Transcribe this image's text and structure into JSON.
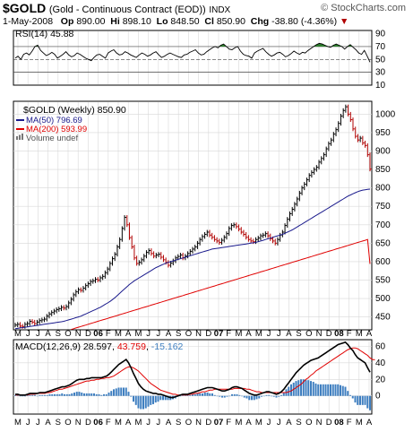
{
  "header": {
    "symbol": "$GOLD",
    "name": "(Gold - Continuous Contract (EOD))",
    "exchange": "INDX",
    "brand": "© StockCharts.com",
    "date": "1-May-2008",
    "open_label": "Op",
    "open": "890.00",
    "high_label": "Hi",
    "high": "898.10",
    "low_label": "Lo",
    "low": "848.50",
    "close_label": "Cl",
    "close": "850.90",
    "change_label": "Chg",
    "change": "-38.80 (-4.36%)",
    "change_arrow": "▼"
  },
  "chart_data": [
    {
      "type": "line",
      "panel": "rsi",
      "label": "RSI(14) 45.88",
      "ylim": [
        10,
        95
      ],
      "yticks": [
        90,
        70,
        50,
        30,
        10
      ],
      "reference_lines": [
        70,
        50,
        30
      ],
      "values": [
        52,
        55,
        50,
        58,
        60,
        57,
        63,
        70,
        72,
        64,
        60,
        56,
        58,
        61,
        58,
        52,
        55,
        58,
        62,
        57,
        54,
        56,
        60,
        58,
        55,
        52,
        50,
        48,
        53,
        57,
        58,
        55,
        52,
        60,
        63,
        65,
        60,
        57,
        58,
        62,
        60,
        57,
        55,
        53,
        57,
        60,
        58,
        55,
        57,
        60,
        62,
        57,
        53,
        55,
        58,
        60,
        58,
        56,
        54,
        53,
        57,
        58,
        61,
        63,
        65,
        60,
        57,
        58,
        62,
        65,
        68,
        70,
        68,
        72,
        74,
        70,
        66,
        65,
        68,
        70,
        63,
        58,
        56,
        55,
        52,
        60,
        63,
        65,
        67,
        62,
        58,
        55,
        57,
        60,
        61,
        58,
        54,
        56,
        59,
        63,
        60,
        58,
        61,
        60,
        64,
        67,
        70,
        73,
        75,
        74,
        72,
        70,
        69,
        72,
        74,
        72,
        70,
        66,
        70,
        73,
        69,
        65,
        60,
        58,
        64,
        55,
        45.88
      ]
    },
    {
      "type": "line",
      "panel": "price",
      "title": "$GOLD (Weekly) 850.90",
      "legend": [
        {
          "name": "MA(50) 796.69",
          "color": "#1a1a8c"
        },
        {
          "name": "MA(200) 593.99",
          "color": "#e00000"
        },
        {
          "name": "Volume undef",
          "color": "#777777"
        }
      ],
      "ylim": [
        415,
        1035
      ],
      "yticks": [
        1000,
        950,
        900,
        850,
        800,
        750,
        700,
        650,
        600,
        550,
        500,
        450
      ],
      "x_labels": [
        "M",
        "J",
        "J",
        "A",
        "S",
        "O",
        "N",
        "D",
        "06",
        "F",
        "M",
        "A",
        "M",
        "J",
        "J",
        "A",
        "S",
        "O",
        "N",
        "D",
        "07",
        "F",
        "M",
        "A",
        "M",
        "J",
        "J",
        "A",
        "S",
        "O",
        "N",
        "D",
        "08",
        "F",
        "M",
        "A"
      ],
      "price": [
        428,
        430,
        425,
        424,
        430,
        432,
        438,
        436,
        432,
        436,
        440,
        442,
        444,
        452,
        458,
        462,
        466,
        470,
        472,
        476,
        474,
        478,
        488,
        498,
        510,
        518,
        524,
        522,
        528,
        535,
        540,
        546,
        548,
        552,
        550,
        556,
        560,
        570,
        580,
        595,
        608,
        620,
        640,
        660,
        690,
        720,
        700,
        665,
        640,
        610,
        595,
        598,
        605,
        615,
        625,
        630,
        622,
        615,
        618,
        620,
        612,
        605,
        598,
        590,
        596,
        602,
        610,
        614,
        618,
        610,
        615,
        622,
        628,
        634,
        640,
        650,
        660,
        668,
        674,
        680,
        672,
        666,
        660,
        656,
        652,
        658,
        666,
        676,
        690,
        698,
        700,
        695,
        688,
        680,
        674,
        666,
        660,
        656,
        654,
        660,
        664,
        670,
        672,
        676,
        670,
        662,
        656,
        650,
        660,
        672,
        680,
        698,
        715,
        730,
        742,
        756,
        770,
        786,
        800,
        810,
        822,
        834,
        842,
        850,
        856,
        870,
        880,
        890,
        906,
        920,
        930,
        946,
        958,
        975,
        995,
        1010,
        1020,
        1000,
        985,
        960,
        940,
        930,
        935,
        922,
        915,
        890,
        850.9
      ],
      "ma50": [
        418,
        419,
        420,
        421,
        422,
        423,
        424,
        425,
        426,
        427,
        428,
        429,
        430,
        431,
        432,
        433,
        434,
        435,
        436,
        437,
        438,
        440,
        442,
        444,
        446,
        448,
        450,
        452,
        455,
        458,
        461,
        464,
        467,
        470,
        473,
        476,
        480,
        484,
        488,
        492,
        497,
        502,
        508,
        514,
        520,
        526,
        532,
        538,
        543,
        548,
        552,
        556,
        560,
        564,
        568,
        572,
        576,
        580,
        584,
        587,
        590,
        593,
        596,
        598,
        600,
        602,
        604,
        606,
        608,
        610,
        612,
        614,
        616,
        618,
        620,
        622,
        624,
        626,
        628,
        630,
        632,
        634,
        635,
        636,
        637,
        638,
        639,
        640,
        641,
        642,
        643,
        644,
        645,
        646,
        647,
        648,
        649,
        650,
        651,
        652,
        654,
        656,
        658,
        660,
        662,
        664,
        666,
        668,
        670,
        672,
        674,
        677,
        680,
        683,
        686,
        690,
        694,
        698,
        702,
        706,
        710,
        714,
        718,
        722,
        726,
        730,
        734,
        738,
        742,
        746,
        750,
        754,
        758,
        762,
        766,
        770,
        774,
        778,
        781,
        784,
        787,
        790,
        792,
        794,
        795,
        796,
        796.69
      ],
      "ma200": [
        370,
        372,
        374,
        376,
        378,
        380,
        382,
        384,
        386,
        388,
        390,
        392,
        394,
        396,
        398,
        400,
        402,
        404,
        406,
        408,
        410,
        412,
        414,
        416,
        418,
        420,
        422,
        424,
        426,
        428,
        430,
        432,
        434,
        436,
        438,
        440,
        442,
        444,
        446,
        448,
        450,
        452,
        454,
        456,
        458,
        460,
        462,
        464,
        466,
        468,
        470,
        472,
        474,
        476,
        478,
        480,
        482,
        484,
        486,
        488,
        490,
        492,
        494,
        496,
        498,
        500,
        502,
        504,
        506,
        508,
        510,
        512,
        514,
        516,
        518,
        520,
        522,
        524,
        526,
        528,
        530,
        532,
        534,
        536,
        538,
        540,
        542,
        544,
        546,
        548,
        550,
        552,
        554,
        556,
        558,
        560,
        562,
        564,
        566,
        568,
        570,
        572,
        574,
        576,
        578,
        580,
        582,
        584,
        586,
        588,
        590,
        592,
        594,
        596,
        598,
        600,
        602,
        604,
        606,
        608,
        610,
        612,
        614,
        616,
        618,
        620,
        622,
        624,
        626,
        628,
        630,
        632,
        634,
        636,
        638,
        640,
        642,
        644,
        646,
        648,
        650,
        652,
        654,
        656,
        658,
        660,
        593.99
      ]
    },
    {
      "type": "line",
      "panel": "macd",
      "label_name": "MACD(12,26,9)",
      "macd_value": "28.597",
      "signal_value": "43.759",
      "hist_value": "-15.162",
      "ylim": [
        -22,
        68
      ],
      "yticks": [
        60,
        40,
        20,
        0
      ],
      "macd": [
        2,
        2,
        1,
        1,
        1,
        2,
        3,
        3,
        3,
        3,
        4,
        4,
        4,
        5,
        6,
        7,
        8,
        9,
        10,
        11,
        11,
        12,
        13,
        15,
        17,
        19,
        20,
        20,
        20,
        21,
        21,
        22,
        22,
        22,
        22,
        22,
        23,
        24,
        26,
        29,
        32,
        35,
        38,
        40,
        42,
        44,
        40,
        34,
        27,
        21,
        15,
        11,
        8,
        6,
        5,
        4,
        3,
        3,
        2,
        2,
        1,
        0,
        -1,
        -2,
        -2,
        -1,
        0,
        1,
        2,
        2,
        2,
        3,
        4,
        5,
        6,
        7,
        8,
        9,
        10,
        10,
        10,
        9,
        8,
        7,
        6,
        6,
        7,
        8,
        10,
        11,
        11,
        10,
        9,
        7,
        5,
        3,
        2,
        1,
        1,
        2,
        3,
        4,
        5,
        5,
        4,
        3,
        2,
        3,
        5,
        8,
        12,
        16,
        20,
        24,
        28,
        31,
        34,
        37,
        39,
        41,
        43,
        44,
        45,
        46,
        48,
        50,
        52,
        54,
        56,
        58,
        60,
        62,
        63,
        64,
        65,
        62,
        58,
        55,
        50,
        46,
        44,
        42,
        40,
        34,
        28.597
      ],
      "signal": [
        1,
        1,
        1,
        1,
        1,
        1,
        2,
        2,
        2,
        3,
        3,
        3,
        3,
        4,
        4,
        5,
        6,
        7,
        8,
        8,
        9,
        10,
        11,
        12,
        13,
        14,
        15,
        16,
        17,
        18,
        18,
        19,
        19,
        20,
        20,
        21,
        21,
        22,
        22,
        23,
        24,
        26,
        28,
        30,
        32,
        34,
        35,
        35,
        34,
        32,
        30,
        27,
        24,
        21,
        18,
        15,
        13,
        11,
        9,
        7,
        6,
        5,
        4,
        3,
        2,
        2,
        1,
        1,
        1,
        1,
        1,
        2,
        2,
        3,
        3,
        4,
        5,
        5,
        6,
        7,
        7,
        8,
        8,
        8,
        8,
        8,
        8,
        8,
        8,
        9,
        9,
        9,
        9,
        9,
        8,
        8,
        7,
        6,
        5,
        5,
        4,
        4,
        4,
        4,
        4,
        4,
        4,
        4,
        4,
        4,
        4,
        5,
        6,
        8,
        10,
        12,
        14,
        17,
        20,
        22,
        25,
        27,
        30,
        32,
        34,
        36,
        38,
        40,
        42,
        44,
        46,
        48,
        50,
        52,
        54,
        56,
        57,
        58,
        58,
        57,
        55,
        53,
        51,
        49,
        46,
        44,
        43.759
      ]
    }
  ],
  "colors": {
    "rsi_line": "#000000",
    "rsi_fill": "#2e7d2e",
    "price_up": "#000000",
    "price_down": "#b00000",
    "ma50": "#1a1a8c",
    "ma200": "#e00000",
    "macd": "#000000",
    "signal": "#e00000",
    "histogram": "#3f7fc0",
    "grid": "#d8d8d8",
    "frame": "#000000"
  }
}
